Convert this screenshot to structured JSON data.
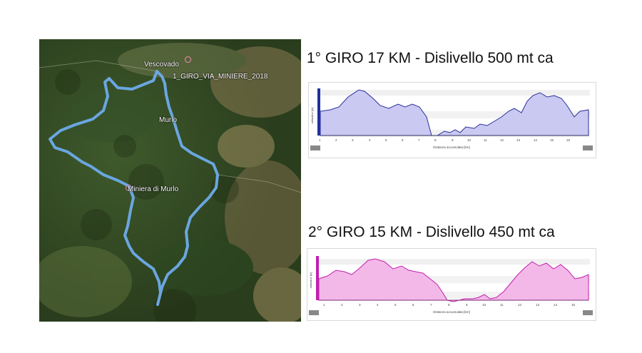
{
  "map": {
    "labels": {
      "vescovado": "Vescovado",
      "track": "1_GIRO_VIA_MINIERE_2018",
      "murlo": "Murlo",
      "miniera": "Miniera di Murlo"
    },
    "colors": {
      "route": "#6aa6e0",
      "pin": "#f28fb4"
    }
  },
  "loops": [
    {
      "title": "1° GIRO 17 KM - Dislivello 500 mt ca",
      "x_label": "Distanza accumulata [km]",
      "y_label": "altitudine [m]",
      "x_ticks": [
        "1",
        "2",
        "3",
        "4",
        "5",
        "6",
        "7",
        "8",
        "9",
        "10",
        "11",
        "12",
        "13",
        "14",
        "15",
        "16"
      ],
      "color_line": "#2a2f9a",
      "color_fill": "#c9c9f2",
      "color_left": "#1f2fa0"
    },
    {
      "title": "2° GIRO 15 KM - Dislivello 450 mt ca",
      "x_label": "Distanza accumulata [km]",
      "y_label": "altitudine [m]",
      "x_ticks": [
        "1",
        "2",
        "3",
        "4",
        "5",
        "6",
        "7",
        "8",
        "9",
        "10",
        "11",
        "12",
        "13",
        "14",
        "15"
      ],
      "color_line": "#c21fae",
      "color_fill": "#f3b8e8",
      "color_left": "#c21fae"
    }
  ]
}
